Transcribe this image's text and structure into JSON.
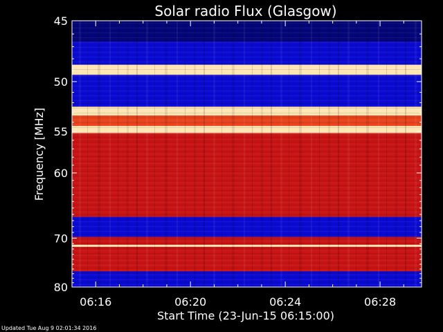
{
  "chart_data": {
    "type": "heatmap",
    "title": "Solar radio Flux (Glasgow)",
    "xlabel": "Start Time (23-Jun-15 06:15:00)",
    "ylabel": "Frequency [MHz]",
    "x_ticks": [
      "06:16",
      "06:20",
      "06:24",
      "06:28"
    ],
    "x_tick_minutes": [
      1,
      5,
      9,
      13
    ],
    "xlim_minutes": [
      0,
      14.75
    ],
    "y_ticks": [
      45,
      50,
      55,
      60,
      70,
      80
    ],
    "ylim": [
      45,
      80
    ],
    "y_scale": "reciprocal",
    "colors": {
      "low": "#0a0ad2",
      "mid": "#c81414",
      "high": "#ffe6b4",
      "background": "#000000"
    },
    "bands_mhz": [
      {
        "f0": 45.0,
        "f1": 46.6,
        "level": "low-dark"
      },
      {
        "f0": 46.6,
        "f1": 48.5,
        "level": "low"
      },
      {
        "f0": 48.5,
        "f1": 49.4,
        "level": "high"
      },
      {
        "f0": 49.4,
        "f1": 52.4,
        "level": "low"
      },
      {
        "f0": 52.4,
        "f1": 53.3,
        "level": "high"
      },
      {
        "f0": 53.3,
        "f1": 54.4,
        "level": "mid-bright"
      },
      {
        "f0": 54.4,
        "f1": 55.2,
        "level": "high"
      },
      {
        "f0": 55.2,
        "f1": 66.4,
        "level": "mid"
      },
      {
        "f0": 66.4,
        "f1": 69.8,
        "level": "low"
      },
      {
        "f0": 69.8,
        "f1": 71.2,
        "level": "mid"
      },
      {
        "f0": 71.2,
        "f1": 71.6,
        "level": "high"
      },
      {
        "f0": 71.6,
        "f1": 76.5,
        "level": "mid"
      },
      {
        "f0": 76.5,
        "f1": 80.0,
        "level": "low"
      }
    ]
  },
  "footer": {
    "updated": "Updated Tue Aug  9 02:01:34 2016"
  }
}
